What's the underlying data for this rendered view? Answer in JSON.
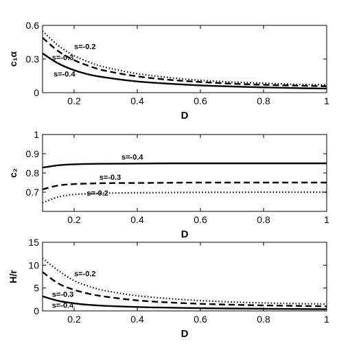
{
  "chart_data": [
    {
      "type": "line",
      "xlabel": "D",
      "ylabel": "c₁α",
      "xlim": [
        0.1,
        1
      ],
      "ylim": [
        0,
        0.6
      ],
      "xticks": [
        "0.2",
        "0.4",
        "0.6",
        "0.8",
        "1"
      ],
      "yticks": [
        "0",
        "0.3",
        "0.6"
      ],
      "grid": false,
      "x": [
        0.1,
        0.15,
        0.2,
        0.25,
        0.3,
        0.4,
        0.5,
        0.6,
        0.7,
        0.8,
        0.9,
        1.0
      ],
      "series": [
        {
          "name": "s=-0.2",
          "style": "dotted",
          "values": [
            0.55,
            0.42,
            0.33,
            0.27,
            0.225,
            0.17,
            0.135,
            0.11,
            0.095,
            0.085,
            0.075,
            0.07
          ]
        },
        {
          "name": "s=-0.3",
          "style": "dashed",
          "values": [
            0.49,
            0.37,
            0.29,
            0.235,
            0.195,
            0.145,
            0.115,
            0.095,
            0.08,
            0.07,
            0.063,
            0.057
          ]
        },
        {
          "name": "s=-0.4",
          "style": "solid",
          "values": [
            0.35,
            0.26,
            0.2,
            0.16,
            0.135,
            0.1,
            0.08,
            0.065,
            0.055,
            0.047,
            0.041,
            0.036
          ]
        }
      ]
    },
    {
      "type": "line",
      "xlabel": "D",
      "ylabel": "c₂",
      "xlim": [
        0.1,
        1
      ],
      "ylim": [
        0.6,
        1
      ],
      "xticks": [
        "0.2",
        "0.4",
        "0.6",
        "0.8",
        "1"
      ],
      "yticks": [
        "0.7",
        "0.8",
        "0.9",
        "1"
      ],
      "grid": false,
      "x": [
        0.1,
        0.15,
        0.2,
        0.25,
        0.3,
        0.4,
        0.5,
        0.6,
        0.7,
        0.8,
        0.9,
        1.0
      ],
      "series": [
        {
          "name": "s=-0.4",
          "style": "solid",
          "values": [
            0.828,
            0.84,
            0.845,
            0.847,
            0.848,
            0.849,
            0.85,
            0.85,
            0.85,
            0.85,
            0.85,
            0.85
          ]
        },
        {
          "name": "s=-0.3",
          "style": "dashed",
          "values": [
            0.715,
            0.735,
            0.742,
            0.745,
            0.747,
            0.748,
            0.749,
            0.75,
            0.75,
            0.75,
            0.75,
            0.75
          ]
        },
        {
          "name": "s=-0.2",
          "style": "dotted",
          "values": [
            0.645,
            0.675,
            0.688,
            0.692,
            0.695,
            0.697,
            0.698,
            0.699,
            0.699,
            0.7,
            0.7,
            0.7
          ]
        }
      ]
    },
    {
      "type": "line",
      "xlabel": "D",
      "ylabel": "H/r",
      "xlim": [
        0.1,
        1
      ],
      "ylim": [
        0,
        15
      ],
      "xticks": [
        "0.2",
        "0.4",
        "0.6",
        "0.8",
        "1"
      ],
      "yticks": [
        "0",
        "5",
        "10",
        "15"
      ],
      "grid": false,
      "x": [
        0.1,
        0.15,
        0.2,
        0.25,
        0.3,
        0.4,
        0.5,
        0.6,
        0.7,
        0.8,
        0.9,
        1.0
      ],
      "series": [
        {
          "name": "s=-0.2",
          "style": "dotted",
          "values": [
            11.5,
            8.8,
            6.6,
            5.3,
            4.4,
            3.3,
            2.7,
            2.25,
            1.95,
            1.75,
            1.6,
            1.5
          ]
        },
        {
          "name": "s=-0.3",
          "style": "dashed",
          "values": [
            8.5,
            6.0,
            4.6,
            3.7,
            3.1,
            2.3,
            1.85,
            1.55,
            1.35,
            1.2,
            1.1,
            1.0
          ]
        },
        {
          "name": "s=-0.4",
          "style": "solid",
          "values": [
            3.2,
            2.2,
            1.65,
            1.3,
            1.1,
            0.85,
            0.7,
            0.6,
            0.52,
            0.46,
            0.42,
            0.38
          ]
        }
      ]
    }
  ]
}
